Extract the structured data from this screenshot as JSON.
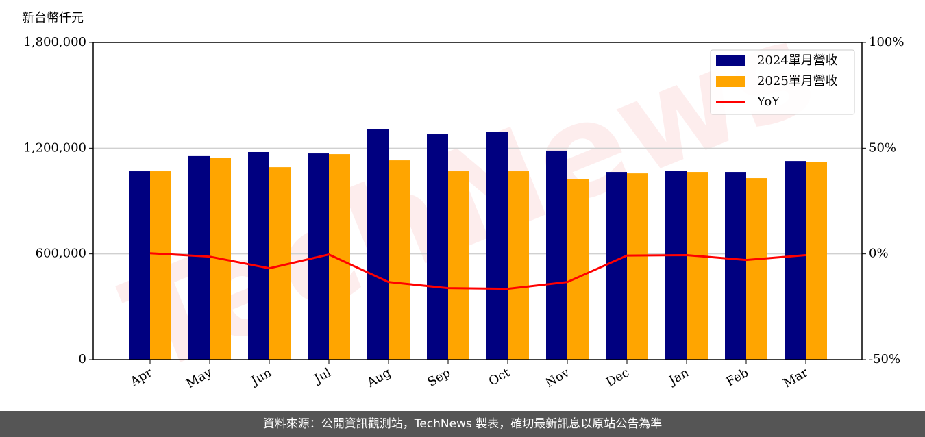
{
  "chart_data": {
    "type": "bar",
    "y_label": "新台幣仟元",
    "categories": [
      "Apr",
      "May",
      "Jun",
      "Jul",
      "Aug",
      "Sep",
      "Oct",
      "Nov",
      "Dec",
      "Jan",
      "Feb",
      "Mar"
    ],
    "series": [
      {
        "name": "2024單月營收",
        "color": "#000080",
        "type": "bar",
        "values": [
          1069000,
          1155000,
          1178000,
          1170000,
          1310000,
          1279000,
          1291000,
          1186000,
          1065000,
          1073000,
          1065000,
          1127000
        ]
      },
      {
        "name": "2025單月營收",
        "color": "#ffa500",
        "type": "bar",
        "values": [
          1069000,
          1143000,
          1092000,
          1166000,
          1131000,
          1069000,
          1069000,
          1026000,
          1057000,
          1065000,
          1030000,
          1120000
        ]
      },
      {
        "name": "YoY",
        "color": "#ff0000",
        "type": "line",
        "axis": "y2",
        "values": [
          0.3,
          -1.3,
          -6.8,
          -0.3,
          -13.3,
          -16.2,
          -16.5,
          -13.3,
          -0.8,
          -0.6,
          -2.9,
          -0.6
        ]
      }
    ],
    "ylim": [
      0,
      1800000
    ],
    "yticks": [
      0,
      {
        "value": 600000,
        "label": "600,000"
      },
      {
        "value": 1200000,
        "label": "1,200,000"
      },
      {
        "value": 1800000,
        "label": "1,800,000"
      }
    ],
    "y2lim": [
      -50,
      100
    ],
    "y2ticks": [
      {
        "value": -50,
        "label": "-50%"
      },
      {
        "value": 0,
        "label": "0%"
      },
      {
        "value": 50,
        "label": "50%"
      },
      {
        "value": 100,
        "label": "100%"
      }
    ],
    "grid": true,
    "legend": "upper right"
  },
  "watermark": "TechNews",
  "footer": "資料來源：公開資訊觀測站，TechNews 製表，確切最新訊息以原站公告為準"
}
